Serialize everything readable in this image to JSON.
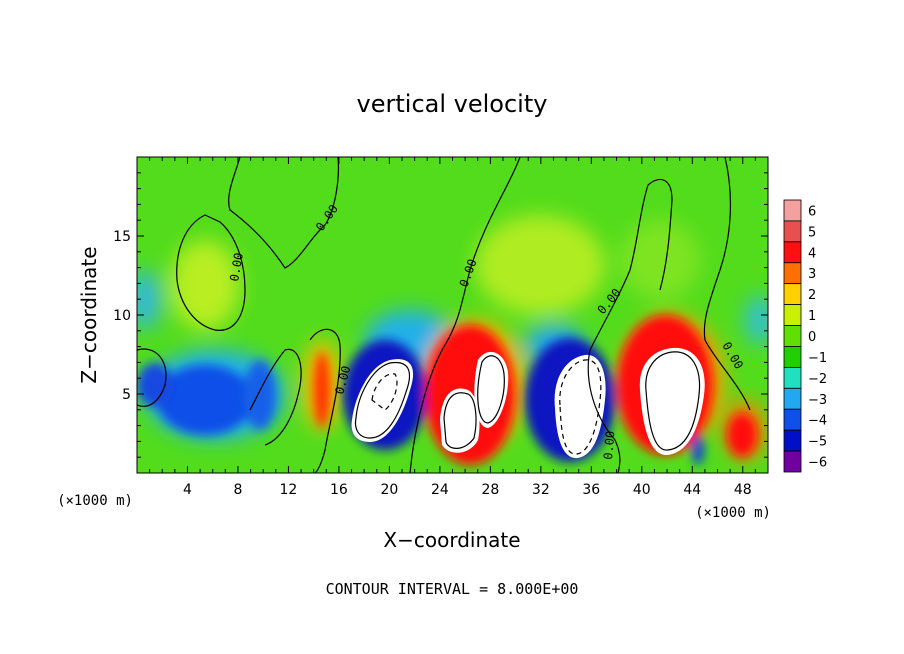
{
  "chart_data": {
    "type": "heatmap",
    "title": "vertical velocity",
    "xlabel": "X−coordinate",
    "ylabel": "Z−coordinate",
    "x_unit_left": "(×1000 m)",
    "x_unit_right": "(×1000 m)",
    "footer": "CONTOUR INTERVAL = 8.000E+00",
    "xlim": [
      0,
      50
    ],
    "ylim": [
      0,
      20
    ],
    "x_ticks": [
      4,
      8,
      12,
      16,
      20,
      24,
      28,
      32,
      36,
      40,
      44,
      48
    ],
    "y_ticks": [
      5,
      10,
      15
    ],
    "contour_label": "0.00",
    "colorbar": {
      "levels": [
        6,
        5,
        4,
        3,
        2,
        1,
        0,
        -1,
        -2,
        -3,
        -4,
        -5,
        -6
      ],
      "level_labels": [
        "6",
        "5",
        "4",
        "3",
        "2",
        "1",
        "0",
        "−1",
        "−2",
        "−3",
        "−4",
        "−5",
        "−6"
      ],
      "colors": [
        "#f4a0a0",
        "#e85050",
        "#ff1010",
        "#ff7000",
        "#ffd000",
        "#c8f000",
        "#60e000",
        "#20d000",
        "#20e0c0",
        "#20a8f0",
        "#1050e8",
        "#0010c8",
        "#7000a0"
      ]
    }
  }
}
